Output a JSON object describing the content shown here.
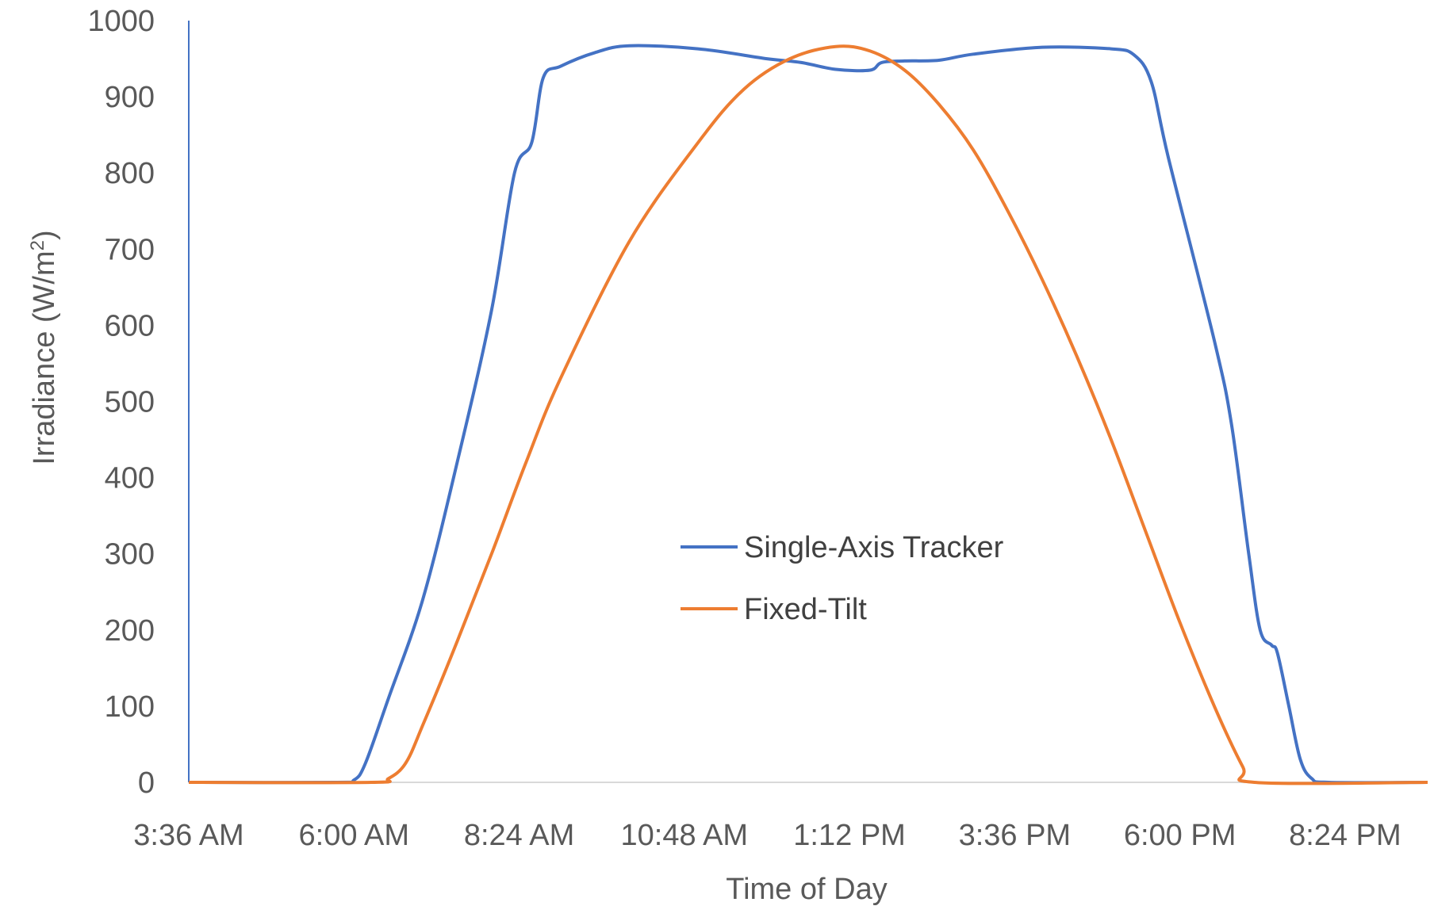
{
  "chart_data": {
    "type": "line",
    "xlabel": "Time of Day",
    "ylabel": "Irradiance (W/m",
    "ylabel_sup": "2",
    "ylabel_close": ")",
    "ylim": [
      0,
      1000
    ],
    "xlim": [
      "3:36 AM",
      "9:36 PM"
    ],
    "x_ticks": [
      "3:36 AM",
      "6:00 AM",
      "8:24 AM",
      "10:48 AM",
      "1:12 PM",
      "3:36 PM",
      "6:00 PM",
      "8:24 PM"
    ],
    "y_ticks": [
      0,
      100,
      200,
      300,
      400,
      500,
      600,
      700,
      800,
      900,
      1000
    ],
    "grid": false,
    "legend": "center",
    "series": [
      {
        "name": "Single-Axis Tracker",
        "color": "#4472C4",
        "points": [
          [
            "3:36 AM",
            0
          ],
          [
            "5:45 AM",
            0
          ],
          [
            "6:00 AM",
            3
          ],
          [
            "6:10 AM",
            25
          ],
          [
            "6:30 AM",
            110
          ],
          [
            "7:00 AM",
            240
          ],
          [
            "7:30 AM",
            420
          ],
          [
            "8:00 AM",
            620
          ],
          [
            "8:20 AM",
            800
          ],
          [
            "8:35 AM",
            840
          ],
          [
            "8:45 AM",
            925
          ],
          [
            "9:00 AM",
            940
          ],
          [
            "9:30 AM",
            958
          ],
          [
            "10:00 AM",
            967
          ],
          [
            "11:00 AM",
            963
          ],
          [
            "12:00 PM",
            950
          ],
          [
            "12:30 PM",
            945
          ],
          [
            "1:00 PM",
            936
          ],
          [
            "1:30 PM",
            935
          ],
          [
            "1:40 PM",
            945
          ],
          [
            "2:00 PM",
            947
          ],
          [
            "2:30 PM",
            948
          ],
          [
            "3:00 PM",
            956
          ],
          [
            "4:00 PM",
            965
          ],
          [
            "5:00 PM",
            963
          ],
          [
            "5:20 PM",
            955
          ],
          [
            "5:35 PM",
            920
          ],
          [
            "5:50 PM",
            820
          ],
          [
            "6:30 PM",
            580
          ],
          [
            "6:45 PM",
            470
          ],
          [
            "7:00 PM",
            300
          ],
          [
            "7:10 PM",
            200
          ],
          [
            "7:20 PM",
            180
          ],
          [
            "7:25 PM",
            170
          ],
          [
            "7:35 PM",
            100
          ],
          [
            "7:45 PM",
            30
          ],
          [
            "7:55 PM",
            5
          ],
          [
            "8:10 PM",
            0
          ],
          [
            "9:36 PM",
            0
          ]
        ]
      },
      {
        "name": "Fixed-Tilt",
        "color": "#ED7D31",
        "points": [
          [
            "3:36 AM",
            0
          ],
          [
            "6:15 AM",
            0
          ],
          [
            "6:30 AM",
            5
          ],
          [
            "6:45 AM",
            25
          ],
          [
            "7:00 AM",
            75
          ],
          [
            "7:30 AM",
            185
          ],
          [
            "8:00 AM",
            300
          ],
          [
            "8:30 AM",
            420
          ],
          [
            "9:00 AM",
            530
          ],
          [
            "10:00 AM",
            710
          ],
          [
            "11:00 AM",
            840
          ],
          [
            "11:40 AM",
            910
          ],
          [
            "12:20 PM",
            950
          ],
          [
            "1:00 PM",
            966
          ],
          [
            "1:30 PM",
            960
          ],
          [
            "2:00 PM",
            935
          ],
          [
            "2:30 PM",
            890
          ],
          [
            "3:00 PM",
            830
          ],
          [
            "3:30 PM",
            750
          ],
          [
            "4:00 PM",
            660
          ],
          [
            "4:30 PM",
            560
          ],
          [
            "5:00 PM",
            450
          ],
          [
            "5:30 PM",
            330
          ],
          [
            "6:00 PM",
            210
          ],
          [
            "6:30 PM",
            100
          ],
          [
            "6:55 PM",
            20
          ],
          [
            "7:05 PM",
            0
          ],
          [
            "9:36 PM",
            0
          ]
        ]
      }
    ]
  }
}
